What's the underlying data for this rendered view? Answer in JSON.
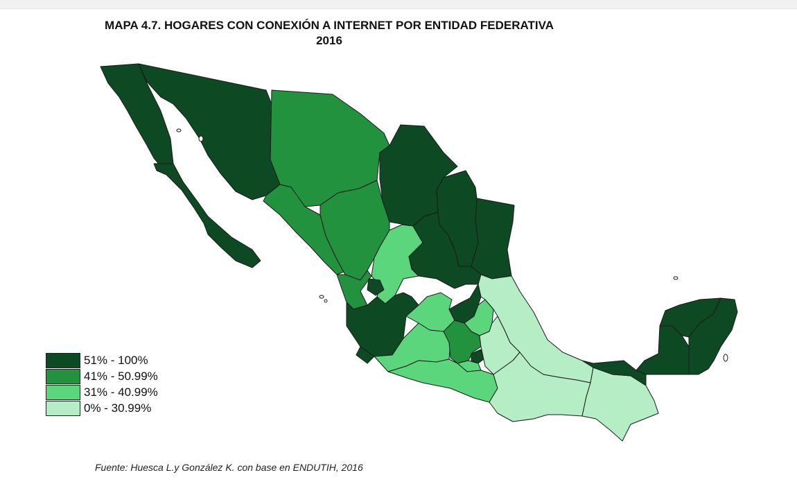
{
  "title": {
    "line1": "MAPA 4.7. HOGARES CON CONEXIÓN A INTERNET POR ENTIDAD FEDERATIVA",
    "line2": "2016"
  },
  "legend": [
    {
      "label": "51% - 100%",
      "color": "#0d4a24"
    },
    {
      "label": "41% - 50.99%",
      "color": "#23923f"
    },
    {
      "label": "31% - 40.99%",
      "color": "#5bd67d"
    },
    {
      "label": "0% - 30.99%",
      "color": "#b5edc5"
    }
  ],
  "source": "Fuente: Huesca L.y González K. con base en ENDUTIH, 2016",
  "states": [
    {
      "name": "baja-california",
      "class": 0
    },
    {
      "name": "baja-california-sur",
      "class": 0
    },
    {
      "name": "sonora",
      "class": 0
    },
    {
      "name": "chihuahua",
      "class": 1
    },
    {
      "name": "coahuila",
      "class": 0
    },
    {
      "name": "nuevo-leon",
      "class": 0
    },
    {
      "name": "tamaulipas",
      "class": 0
    },
    {
      "name": "sinaloa",
      "class": 1
    },
    {
      "name": "durango",
      "class": 1
    },
    {
      "name": "zacatecas",
      "class": 2
    },
    {
      "name": "san-luis-potosi",
      "class": 0
    },
    {
      "name": "nayarit",
      "class": 1
    },
    {
      "name": "aguascalientes",
      "class": 0
    },
    {
      "name": "jalisco",
      "class": 0
    },
    {
      "name": "guanajuato",
      "class": 2
    },
    {
      "name": "queretaro",
      "class": 0
    },
    {
      "name": "hidalgo",
      "class": 2
    },
    {
      "name": "veracruz",
      "class": 3
    },
    {
      "name": "colima",
      "class": 0
    },
    {
      "name": "michoacan",
      "class": 2
    },
    {
      "name": "estado-de-mexico",
      "class": 1
    },
    {
      "name": "ciudad-de-mexico",
      "class": 0
    },
    {
      "name": "tlaxcala",
      "class": 3
    },
    {
      "name": "puebla",
      "class": 3
    },
    {
      "name": "morelos",
      "class": 2
    },
    {
      "name": "guerrero",
      "class": 2
    },
    {
      "name": "oaxaca",
      "class": 3
    },
    {
      "name": "chiapas",
      "class": 3
    },
    {
      "name": "tabasco",
      "class": 0
    },
    {
      "name": "campeche",
      "class": 0
    },
    {
      "name": "yucatan",
      "class": 0
    },
    {
      "name": "quintana-roo",
      "class": 0
    }
  ]
}
